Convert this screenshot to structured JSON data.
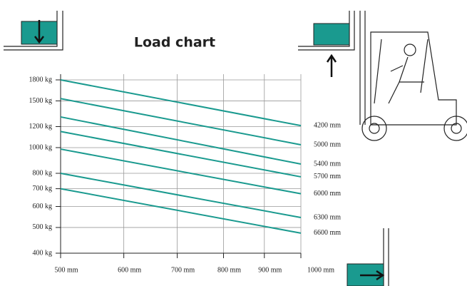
{
  "chart_data": {
    "type": "line",
    "title": "Load chart",
    "log_x": true,
    "log_y": true,
    "grid": true,
    "color": "#1a9a8f",
    "x": [
      500,
      1000
    ],
    "xlim": [
      500,
      1000
    ],
    "xticks": [
      {
        "value": 500,
        "label": "500 mm"
      },
      {
        "value": 600,
        "label": "600 mm"
      },
      {
        "value": 700,
        "label": "700 mm"
      },
      {
        "value": 800,
        "label": "800 mm"
      },
      {
        "value": 900,
        "label": "900 mm"
      },
      {
        "value": 1000,
        "label": "1000 mm"
      }
    ],
    "ylim": [
      400,
      1800
    ],
    "yticks": [
      {
        "value": 400,
        "label": "400 kg"
      },
      {
        "value": 500,
        "label": "500 kg"
      },
      {
        "value": 600,
        "label": "600 kg"
      },
      {
        "value": 700,
        "label": "700 kg"
      },
      {
        "value": 800,
        "label": "800 kg"
      },
      {
        "value": 1000,
        "label": "1000 kg"
      },
      {
        "value": 1200,
        "label": "1200 kg"
      },
      {
        "value": 1500,
        "label": "1500 kg"
      },
      {
        "value": 1800,
        "label": "1800 kg"
      }
    ],
    "series": [
      {
        "name": "4200 mm",
        "values": [
          1800,
          1210
        ]
      },
      {
        "name": "5000 mm",
        "values": [
          1530,
          1025
        ]
      },
      {
        "name": "5400 mm",
        "values": [
          1305,
          867
        ]
      },
      {
        "name": "5700 mm",
        "values": [
          1150,
          776
        ]
      },
      {
        "name": "6000 mm",
        "values": [
          987,
          670
        ]
      },
      {
        "name": "6300 mm",
        "values": [
          800,
          545
        ]
      },
      {
        "name": "6600 mm",
        "values": [
          700,
          476
        ]
      }
    ]
  }
}
